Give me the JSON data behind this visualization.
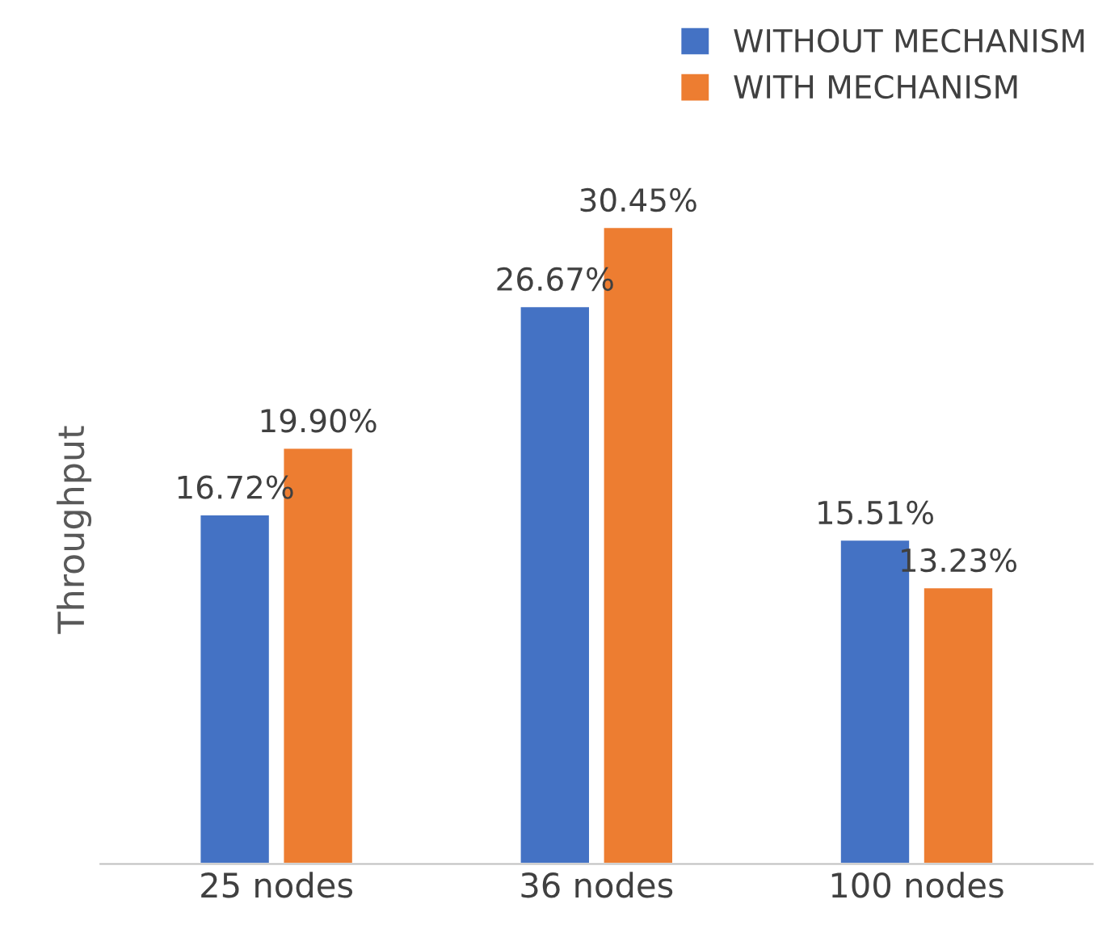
{
  "chart_data": {
    "type": "bar",
    "ylabel": "Throughput",
    "categories": [
      "25 nodes",
      "36 nodes",
      "100 nodes"
    ],
    "series": [
      {
        "name": "WITHOUT MECHANISM",
        "color": "#4472c4",
        "values": [
          16.72,
          26.67,
          15.51
        ],
        "value_labels": [
          "16.72%",
          "26.67%",
          "15.51%"
        ]
      },
      {
        "name": "WITH MECHANISM",
        "color": "#ed7d31",
        "values": [
          19.9,
          30.45,
          13.23
        ],
        "value_labels": [
          "19.90%",
          "30.45%",
          "13.23%"
        ]
      }
    ],
    "legend": "top right",
    "grid": false
  }
}
